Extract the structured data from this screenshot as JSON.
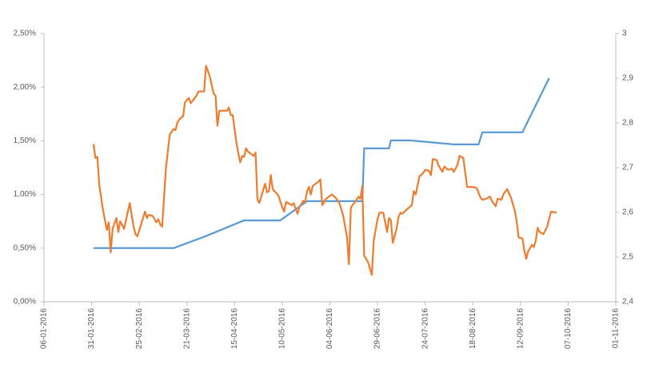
{
  "chart_data": {
    "type": "line",
    "xlim": [
      "06-01-2016",
      "01-11-2016"
    ],
    "xticks": [
      "06-01-2016",
      "31-01-2016",
      "25-02-2016",
      "21-03-2016",
      "15-04-2016",
      "10-05-2016",
      "04-06-2016",
      "29-06-2016",
      "24-07-2016",
      "18-08-2016",
      "12-09-2016",
      "07-10-2016",
      "01-11-2016"
    ],
    "ylim": [
      0,
      2.5
    ],
    "yticks": [
      {
        "value": 0,
        "label": "0,00%"
      },
      {
        "value": 0.5,
        "label": "0,50%"
      },
      {
        "value": 1,
        "label": "1,00%"
      },
      {
        "value": 1.5,
        "label": "1,50%"
      },
      {
        "value": 2,
        "label": "2,00%"
      },
      {
        "value": 2.5,
        "label": "2,50%"
      }
    ],
    "y2lim": [
      2.4,
      3
    ],
    "y2ticks": [
      {
        "value": 2.4,
        "label": "2,4"
      },
      {
        "value": 2.5,
        "label": "2,5"
      },
      {
        "value": 2.6,
        "label": "2,6"
      },
      {
        "value": 2.7,
        "label": "2,7"
      },
      {
        "value": 2.8,
        "label": "2,8"
      },
      {
        "value": 2.9,
        "label": "2,9"
      },
      3
    ],
    "grid": false,
    "series": [
      {
        "color": "#5b9bd5",
        "axis": "y2",
        "x": [
          "01-02-2016",
          "14-03-2016",
          "31-03-2016",
          "20-04-2016",
          "09-05-2016",
          "23-05-2016",
          "21-06-2016",
          "22-06-2016",
          "05-07-2016",
          "06-07-2016",
          "16-07-2016",
          "08-08-2016",
          "21-08-2016",
          "23-08-2016",
          "13-09-2016",
          "27-09-2016"
        ],
        "values": [
          2.52,
          2.52,
          2.547,
          2.582,
          2.582,
          2.625,
          2.625,
          2.743,
          2.743,
          2.761,
          2.761,
          2.752,
          2.752,
          2.779,
          2.779,
          2.9
        ]
      },
      {
        "color": "#ed7d31",
        "x": [
          "01-02-2016",
          "02-02-2016",
          "03-02-2016",
          "04-02-2016",
          "06-02-2016",
          "08-02-2016",
          "09-02-2016",
          "10-02-2016",
          "11-02-2016",
          "13-02-2016",
          "14-02-2016",
          "15-02-2016",
          "17-02-2016",
          "20-02-2016",
          "22-02-2016",
          "23-02-2016",
          "24-02-2016",
          "28-02-2016",
          "29-02-2016",
          "01-03-2016",
          "03-03-2016",
          "05-03-2016",
          "06-03-2016",
          "07-03-2016",
          "08-03-2016",
          "10-03-2016",
          "12-03-2016",
          "14-03-2016",
          "15-03-2016",
          "16-03-2016",
          "17-03-2016",
          "19-03-2016",
          "20-03-2016",
          "22-03-2016",
          "23-03-2016",
          "26-03-2016",
          "27-03-2016",
          "30-03-2016",
          "31-03-2016",
          "02-04-2016",
          "04-04-2016",
          "05-04-2016",
          "06-04-2016",
          "07-04-2016",
          "11-04-2016",
          "12-04-2016",
          "13-04-2016",
          "14-04-2016",
          "16-04-2016",
          "17-04-2016",
          "18-04-2016",
          "19-04-2016",
          "20-04-2016",
          "21-04-2016",
          "22-04-2016",
          "25-04-2016",
          "26-04-2016",
          "27-04-2016",
          "28-04-2016",
          "30-04-2016",
          "01-05-2016",
          "02-05-2016",
          "03-05-2016",
          "04-05-2016",
          "05-05-2016",
          "08-05-2016",
          "10-05-2016",
          "11-05-2016",
          "12-05-2016",
          "13-05-2016",
          "15-05-2016",
          "16-05-2016",
          "18-05-2016",
          "19-05-2016",
          "21-05-2016",
          "22-05-2016",
          "23-05-2016",
          "24-05-2016",
          "25-05-2016",
          "26-05-2016",
          "29-05-2016",
          "30-05-2016",
          "31-05-2016",
          "02-06-2016",
          "05-06-2016",
          "07-06-2016",
          "09-06-2016",
          "10-06-2016",
          "11-06-2016",
          "13-06-2016",
          "14-06-2016",
          "15-06-2016",
          "18-06-2016",
          "19-06-2016",
          "20-06-2016",
          "21-06-2016",
          "22-06-2016",
          "24-06-2016",
          "26-06-2016",
          "27-06-2016",
          "29-06-2016",
          "30-06-2016",
          "02-07-2016",
          "04-07-2016",
          "05-07-2016",
          "06-07-2016",
          "07-07-2016",
          "09-07-2016",
          "10-07-2016",
          "11-07-2016",
          "12-07-2016",
          "15-07-2016",
          "17-07-2016",
          "18-07-2016",
          "19-07-2016",
          "21-07-2016",
          "23-07-2016",
          "24-07-2016",
          "26-07-2016",
          "27-07-2016",
          "28-07-2016",
          "30-07-2016",
          "31-07-2016",
          "02-08-2016",
          "03-08-2016",
          "05-08-2016",
          "07-08-2016",
          "08-08-2016",
          "10-08-2016",
          "11-08-2016",
          "13-08-2016",
          "15-08-2016",
          "18-08-2016",
          "20-08-2016",
          "22-08-2016",
          "23-08-2016",
          "25-08-2016",
          "27-08-2016",
          "28-08-2016",
          "30-08-2016",
          "31-08-2016",
          "02-09-2016",
          "03-09-2016",
          "05-09-2016",
          "07-09-2016",
          "09-09-2016",
          "10-09-2016",
          "11-09-2016",
          "13-09-2016",
          "14-09-2016",
          "15-09-2016",
          "16-09-2016",
          "18-09-2016",
          "19-09-2016",
          "20-09-2016",
          "21-09-2016",
          "22-09-2016",
          "24-09-2016",
          "26-09-2016",
          "28-09-2016",
          "01-10-2016"
        ],
        "values": [
          1.47,
          1.34,
          1.35,
          1.09,
          0.85,
          0.67,
          0.74,
          0.46,
          0.68,
          0.78,
          0.65,
          0.75,
          0.68,
          0.92,
          0.7,
          0.63,
          0.61,
          0.84,
          0.78,
          0.81,
          0.8,
          0.74,
          0.77,
          0.72,
          0.7,
          1.25,
          1.56,
          1.61,
          1.6,
          1.67,
          1.7,
          1.73,
          1.86,
          1.9,
          1.85,
          1.92,
          1.96,
          1.96,
          2.2,
          2.1,
          1.94,
          1.92,
          1.64,
          1.78,
          1.78,
          1.81,
          1.74,
          1.74,
          1.48,
          1.38,
          1.3,
          1.36,
          1.35,
          1.43,
          1.4,
          1.36,
          1.39,
          0.95,
          0.92,
          1.04,
          1.1,
          1.02,
          1.03,
          1.18,
          1.05,
          0.99,
          0.88,
          0.84,
          0.93,
          0.92,
          0.9,
          0.92,
          0.82,
          0.88,
          0.94,
          0.93,
          1.03,
          1.07,
          1.0,
          1.08,
          1.12,
          1.14,
          0.9,
          0.96,
          1.0,
          0.97,
          0.92,
          0.86,
          0.8,
          0.6,
          0.35,
          0.88,
          0.95,
          0.98,
          0.96,
          1.08,
          0.43,
          0.37,
          0.25,
          0.57,
          0.77,
          0.83,
          0.83,
          0.65,
          0.78,
          0.76,
          0.55,
          0.68,
          0.79,
          0.83,
          0.82,
          0.87,
          0.9,
          1.03,
          1.0,
          1.17,
          1.2,
          1.23,
          1.22,
          1.18,
          1.33,
          1.32,
          1.27,
          1.21,
          1.26,
          1.23,
          1.24,
          1.21,
          1.28,
          1.36,
          1.34,
          1.07,
          1.07,
          1.06,
          0.97,
          0.95,
          0.96,
          0.98,
          0.94,
          0.89,
          0.96,
          0.95,
          1.0,
          1.05,
          0.97,
          0.85,
          0.75,
          0.6,
          0.59,
          0.48,
          0.4,
          0.47,
          0.53,
          0.51,
          0.57,
          0.69,
          0.65,
          0.63,
          0.7,
          0.84,
          0.83
        ]
      }
    ]
  }
}
